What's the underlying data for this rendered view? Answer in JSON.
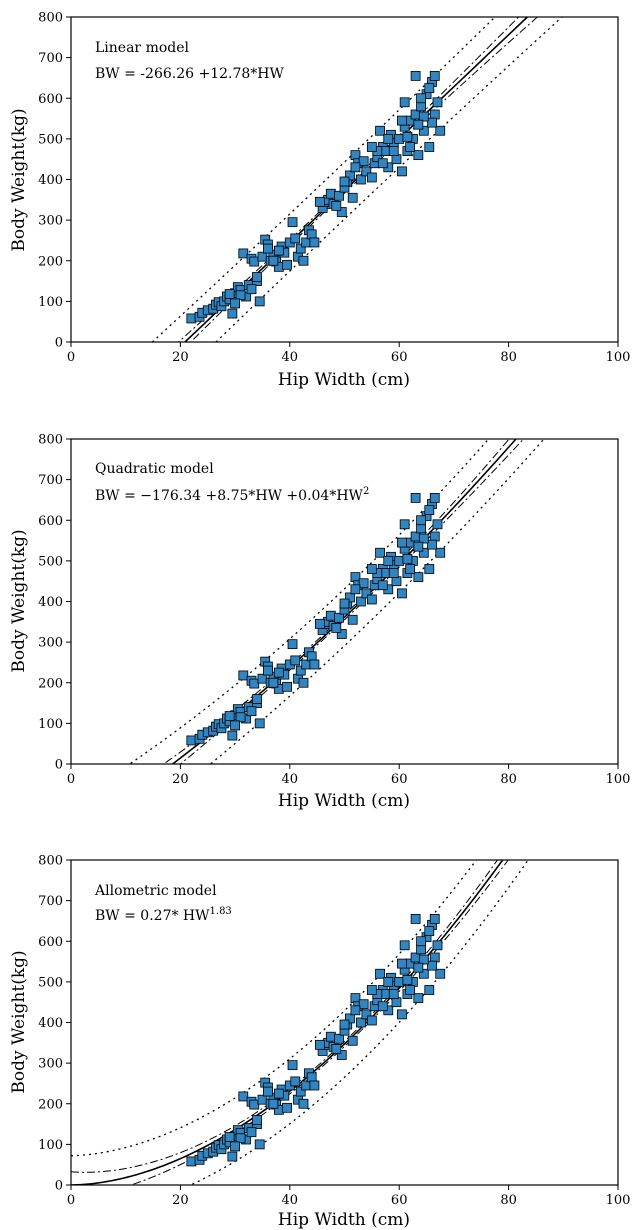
{
  "chart_data": [
    {
      "type": "scatter",
      "title": "",
      "xlabel": "Hip Width  (cm)",
      "ylabel": "Body Weight(kg)",
      "xlim": [
        0,
        100
      ],
      "ylim": [
        0,
        800
      ],
      "xticks": [
        0,
        20,
        40,
        60,
        80,
        100
      ],
      "yticks": [
        0,
        100,
        200,
        300,
        400,
        500,
        600,
        700,
        800
      ],
      "annotations": [
        "Linear model",
        "BW = -266.26 +12.78*HW"
      ],
      "fit": {
        "model": "linear",
        "a": -266.26,
        "b": 12.78
      },
      "marker_color": "#2f86c3"
    },
    {
      "type": "scatter",
      "title": "",
      "xlabel": "Hip Width  (cm)",
      "ylabel": "Body Weight(kg)",
      "xlim": [
        0,
        100
      ],
      "ylim": [
        0,
        800
      ],
      "xticks": [
        0,
        20,
        40,
        60,
        80,
        100
      ],
      "yticks": [
        0,
        100,
        200,
        300,
        400,
        500,
        600,
        700,
        800
      ],
      "annotations": [
        "Quadratic  model",
        "BW = −176.34 +8.75*HW +0.04*HW",
        "2"
      ],
      "fit": {
        "model": "quadratic",
        "a": -176.34,
        "b": 8.75,
        "c": 0.04
      },
      "marker_color": "#2f86c3"
    },
    {
      "type": "scatter",
      "title": "",
      "xlabel": "Hip Width  (cm)",
      "ylabel": "Body Weight(kg)",
      "xlim": [
        0,
        100
      ],
      "ylim": [
        0,
        800
      ],
      "xticks": [
        0,
        20,
        40,
        60,
        80,
        100
      ],
      "yticks": [
        0,
        100,
        200,
        300,
        400,
        500,
        600,
        700,
        800
      ],
      "annotations": [
        "Allometric model",
        "BW = 0.27* HW",
        "1.83"
      ],
      "fit": {
        "model": "allometric",
        "a": 0.27,
        "b": 1.83
      },
      "marker_color": "#2f86c3"
    }
  ],
  "points": [
    [
      22,
      58
    ],
    [
      23.5,
      62
    ],
    [
      24,
      72
    ],
    [
      25,
      78
    ],
    [
      26,
      82
    ],
    [
      26.5,
      92
    ],
    [
      27,
      98
    ],
    [
      27.5,
      88
    ],
    [
      28,
      100
    ],
    [
      28.5,
      112
    ],
    [
      29,
      105
    ],
    [
      29.5,
      70
    ],
    [
      30,
      120
    ],
    [
      30.5,
      135
    ],
    [
      31,
      128
    ],
    [
      31.5,
      218
    ],
    [
      32,
      112
    ],
    [
      32.5,
      140
    ],
    [
      33,
      205
    ],
    [
      33.5,
      198
    ],
    [
      34,
      150
    ],
    [
      34.5,
      100
    ],
    [
      35,
      210
    ],
    [
      35.5,
      252
    ],
    [
      36,
      240
    ],
    [
      36.5,
      200
    ],
    [
      37,
      215
    ],
    [
      37.5,
      198
    ],
    [
      38,
      185
    ],
    [
      38.5,
      235
    ],
    [
      39,
      220
    ],
    [
      39.5,
      190
    ],
    [
      40,
      245
    ],
    [
      40.5,
      295
    ],
    [
      41,
      255
    ],
    [
      41.5,
      210
    ],
    [
      42,
      230
    ],
    [
      42.5,
      200
    ],
    [
      43,
      245
    ],
    [
      43.5,
      275
    ],
    [
      44,
      265
    ],
    [
      44.5,
      245
    ],
    [
      46,
      330
    ],
    [
      46.5,
      345
    ],
    [
      47,
      350
    ],
    [
      47.5,
      365
    ],
    [
      48,
      340
    ],
    [
      49,
      360
    ],
    [
      49.5,
      320
    ],
    [
      50,
      380
    ],
    [
      50.5,
      395
    ],
    [
      51,
      410
    ],
    [
      51.5,
      355
    ],
    [
      52,
      460
    ],
    [
      52.5,
      440
    ],
    [
      53,
      400
    ],
    [
      54,
      420
    ],
    [
      55,
      405
    ],
    [
      55.5,
      440
    ],
    [
      56,
      455
    ],
    [
      56.5,
      520
    ],
    [
      57,
      480
    ],
    [
      57.5,
      470
    ],
    [
      58,
      430
    ],
    [
      58.5,
      510
    ],
    [
      59,
      490
    ],
    [
      59.5,
      450
    ],
    [
      60,
      500
    ],
    [
      60.5,
      420
    ],
    [
      61,
      530
    ],
    [
      61.5,
      470
    ],
    [
      62,
      545
    ],
    [
      62.5,
      500
    ],
    [
      63,
      560
    ],
    [
      63.5,
      460
    ],
    [
      64,
      580
    ],
    [
      64.5,
      520
    ],
    [
      65,
      610
    ],
    [
      65.5,
      480
    ],
    [
      66,
      640
    ],
    [
      66.5,
      560
    ],
    [
      67,
      590
    ],
    [
      67.5,
      520
    ],
    [
      63,
      655
    ],
    [
      64,
      600
    ],
    [
      65.5,
      625
    ],
    [
      66.5,
      655
    ],
    [
      61,
      590
    ],
    [
      59,
      470
    ],
    [
      58,
      500
    ],
    [
      57,
      440
    ],
    [
      62,
      480
    ],
    [
      66,
      540
    ],
    [
      64.5,
      555
    ],
    [
      63.5,
      535
    ],
    [
      60.5,
      545
    ],
    [
      61.5,
      505
    ],
    [
      56,
      470
    ],
    [
      55,
      480
    ],
    [
      53.5,
      445
    ],
    [
      52,
      430
    ],
    [
      50,
      395
    ],
    [
      48.5,
      335
    ],
    [
      45.5,
      345
    ],
    [
      38,
      225
    ],
    [
      37,
      200
    ],
    [
      36,
      230
    ],
    [
      34,
      160
    ],
    [
      33,
      130
    ],
    [
      31,
      115
    ],
    [
      30,
      95
    ],
    [
      29,
      118
    ]
  ]
}
